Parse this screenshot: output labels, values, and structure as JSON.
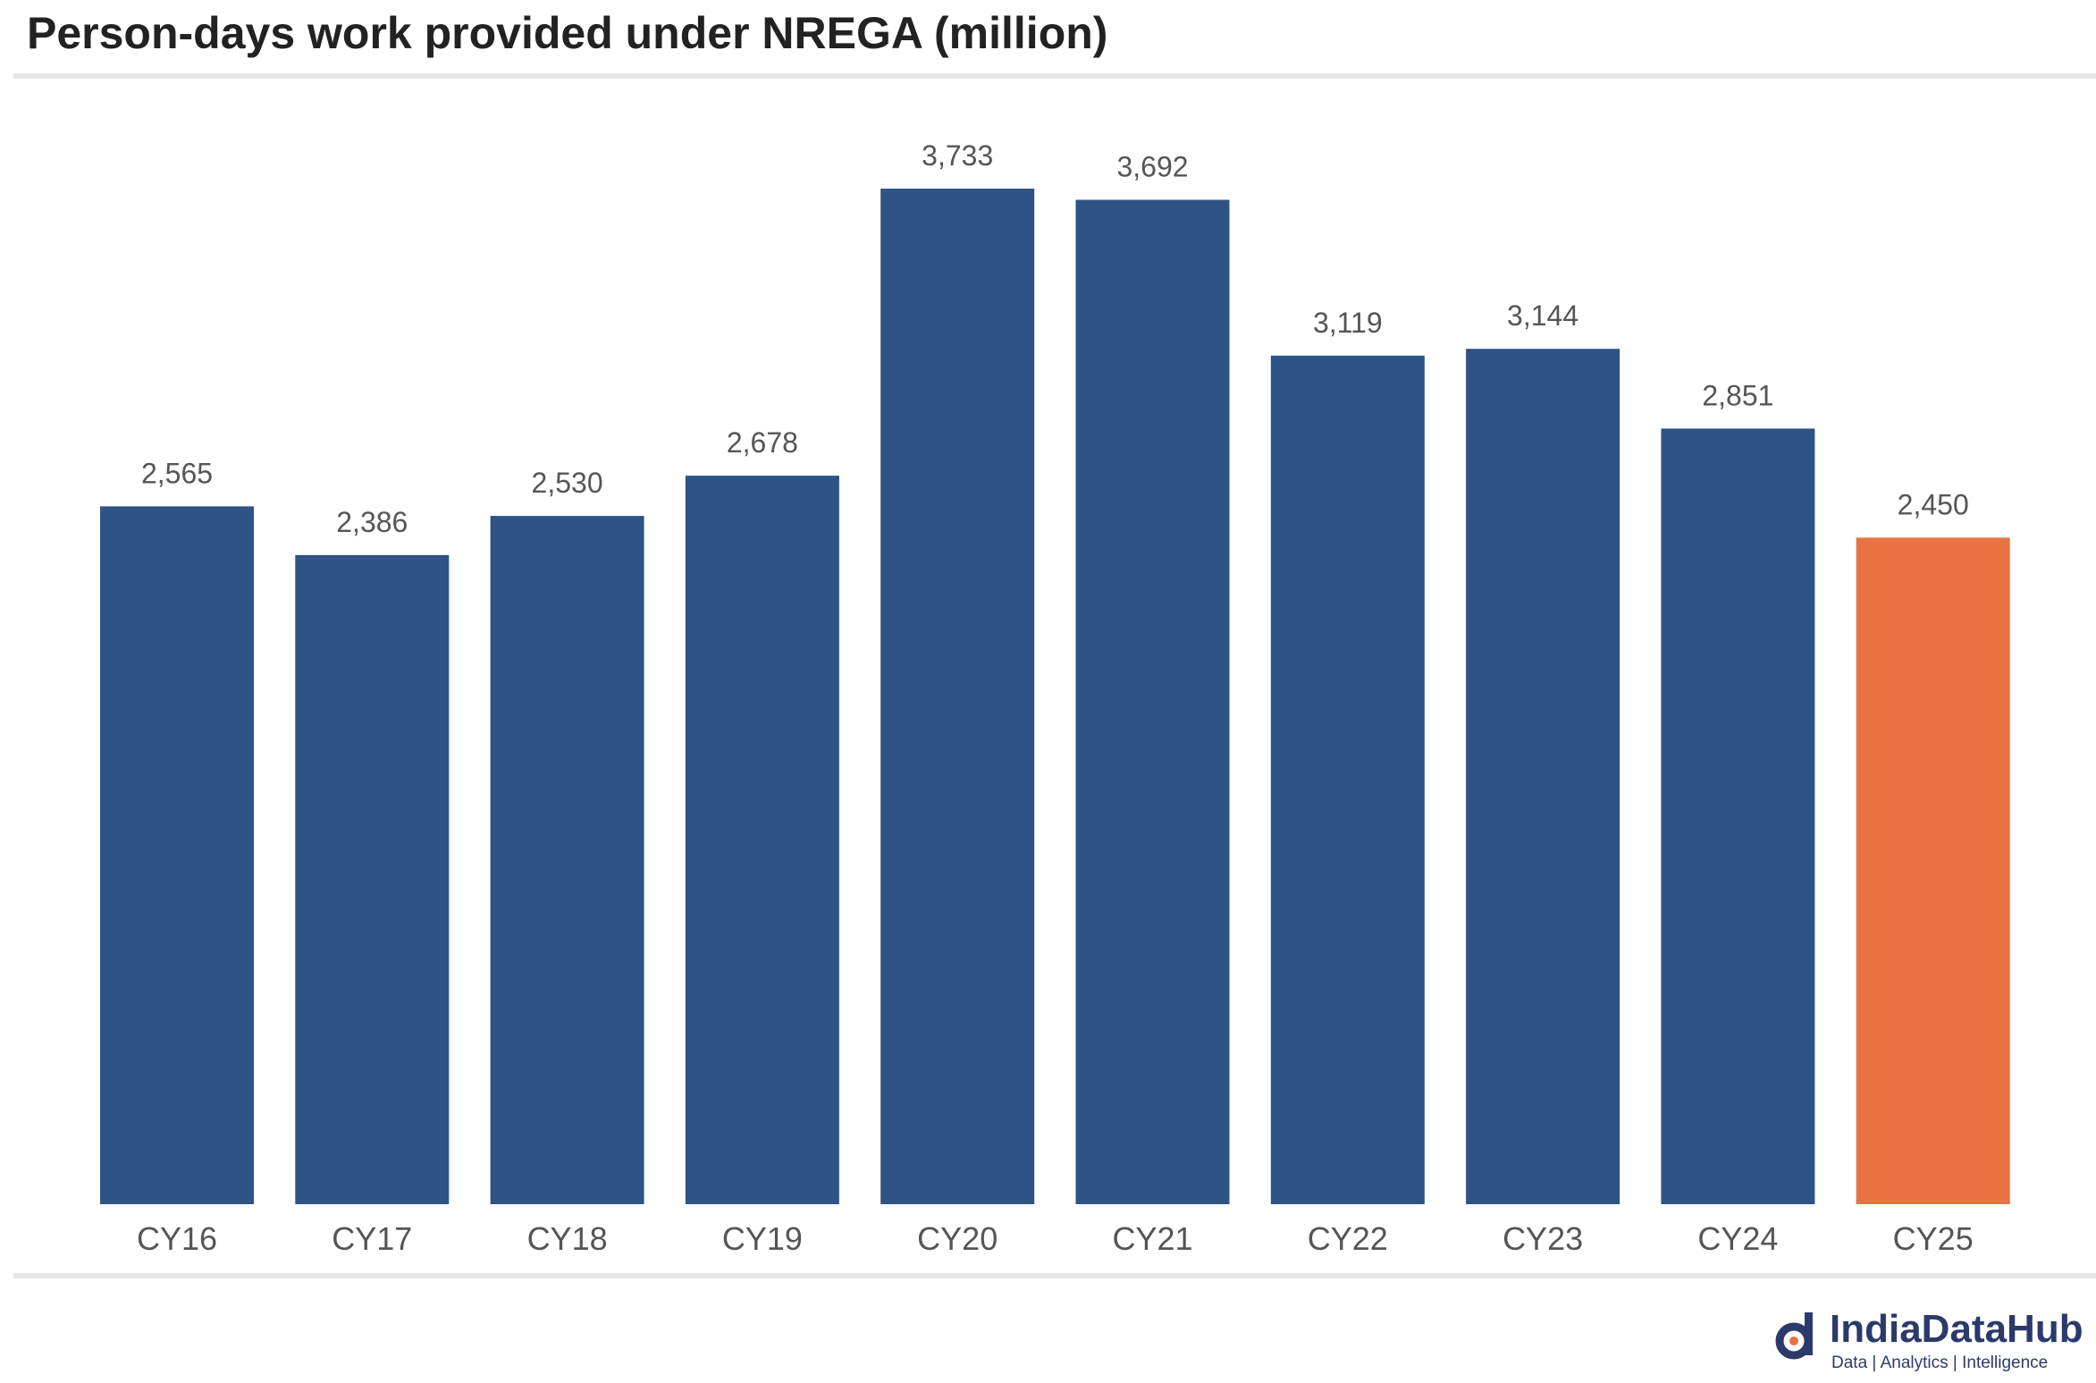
{
  "title": "Person-days work provided under NREGA (million)",
  "chart_data": {
    "type": "bar",
    "title": "Person-days work provided under NREGA (million)",
    "categories": [
      "CY16",
      "CY17",
      "CY18",
      "CY19",
      "CY20",
      "CY21",
      "CY22",
      "CY23",
      "CY24",
      "CY25"
    ],
    "values": [
      2565,
      2386,
      2530,
      2678,
      3733,
      3692,
      3119,
      3144,
      2851,
      2450
    ],
    "value_labels": [
      "2,565",
      "2,386",
      "2,530",
      "2,678",
      "3,733",
      "3,692",
      "3,119",
      "3,144",
      "2,851",
      "2,450"
    ],
    "colors": [
      "#2e5385",
      "#2e5385",
      "#2e5385",
      "#2e5385",
      "#2e5385",
      "#2e5385",
      "#2e5385",
      "#2e5385",
      "#2e5385",
      "#e87242"
    ],
    "xlabel": "",
    "ylabel": "",
    "ylim": [
      0,
      3733
    ],
    "grid": false,
    "legend": "none"
  },
  "logo": {
    "name": "IndiaDataHub",
    "tagline": "Data | Analytics | Intelligence"
  }
}
